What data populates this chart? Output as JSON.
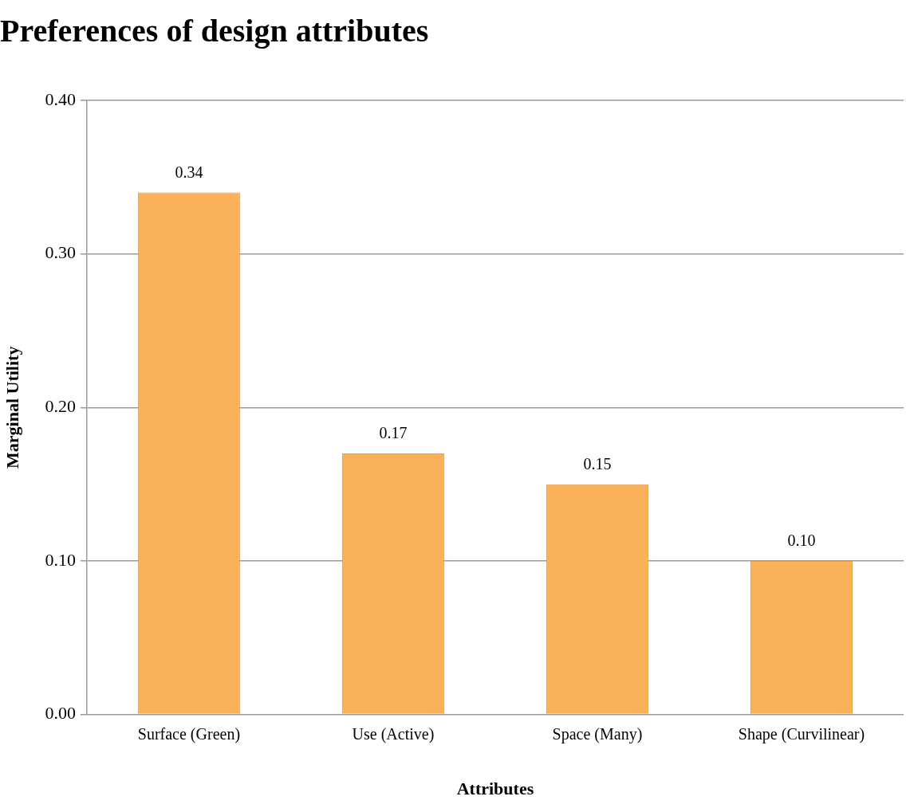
{
  "chart_data": {
    "type": "bar",
    "title": "Preferences of design attributes",
    "xlabel": "Attributes",
    "ylabel": "Marginal Utility",
    "categories": [
      "Surface (Green)",
      "Use (Active)",
      "Space (Many)",
      "Shape (Curvilinear)"
    ],
    "values": [
      0.34,
      0.17,
      0.15,
      0.1
    ],
    "value_labels": [
      "0.34",
      "0.17",
      "0.15",
      "0.10"
    ],
    "color": "#fbb15a",
    "ylim": [
      0,
      0.4
    ],
    "yticks": [
      {
        "value": 0,
        "label": "0.00"
      },
      {
        "value": 0.1,
        "label": "0.10"
      },
      {
        "value": 0.2,
        "label": "0.20"
      },
      {
        "value": 0.3,
        "label": "0.30"
      },
      {
        "value": 0.4,
        "label": "0.40"
      }
    ],
    "grid": "y",
    "legend": false
  }
}
